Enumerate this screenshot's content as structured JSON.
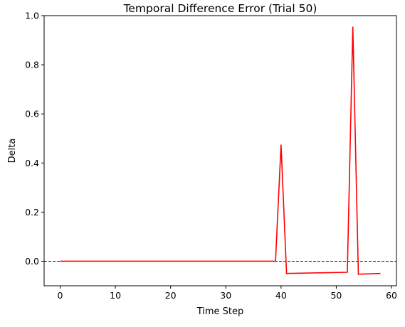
{
  "chart_data": {
    "type": "line",
    "title": "Temporal Difference Error (Trial 50)",
    "xlabel": "Time Step",
    "ylabel": "Delta",
    "xlim": [
      -2.9,
      60.9
    ],
    "ylim": [
      -0.1,
      1.0
    ],
    "xticks": [
      0,
      10,
      20,
      30,
      40,
      50,
      60
    ],
    "xtick_labels": [
      "0",
      "10",
      "20",
      "30",
      "40",
      "50",
      "60"
    ],
    "yticks": [
      0.0,
      0.2,
      0.4,
      0.6,
      0.8,
      1.0
    ],
    "ytick_labels": [
      "0.0",
      "0.2",
      "0.4",
      "0.6",
      "0.8",
      "1.0"
    ],
    "grid": false,
    "reference_line": {
      "y": 0.0,
      "style": "dashed",
      "color": "#000000"
    },
    "series": [
      {
        "color": "#ff0000",
        "x": [
          0,
          39,
          40,
          41,
          52,
          53,
          54,
          58
        ],
        "y": [
          0.0,
          0.0,
          0.475,
          -0.05,
          -0.045,
          0.955,
          -0.053,
          -0.05
        ]
      }
    ]
  }
}
